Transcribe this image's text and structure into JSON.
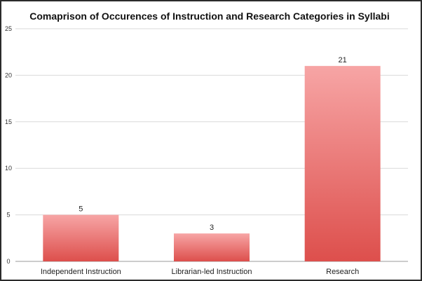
{
  "chart_data": {
    "type": "bar",
    "title": "Comaprison of Occurences of Instruction and Research Categories in Syllabi",
    "xlabel": "",
    "ylabel": "",
    "categories": [
      "Independent Instruction",
      "Librarian-led Instruction",
      "Research"
    ],
    "values": [
      5,
      3,
      21
    ],
    "data_labels": [
      "5",
      "3",
      "21"
    ],
    "ylim": [
      0,
      25
    ],
    "yticks": [
      0,
      5,
      10,
      15,
      20,
      25
    ],
    "grid": true,
    "legend": "none",
    "bar_color_top": "#f7a5a5",
    "bar_color_bottom": "#dd4f4c"
  }
}
